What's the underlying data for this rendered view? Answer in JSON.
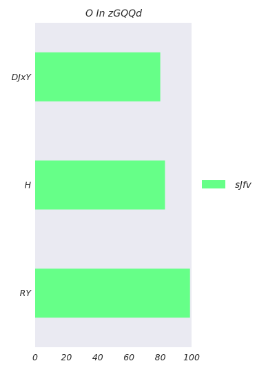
{
  "chart_data": {
    "type": "bar",
    "orientation": "horizontal",
    "title": "O In zGQQd",
    "categories": [
      "DJxY",
      "H",
      "RY"
    ],
    "series": [
      {
        "name": "sJfv",
        "values": [
          80,
          83,
          99
        ],
        "color": "#66ff88"
      }
    ],
    "xlim": [
      0,
      100
    ],
    "xticks": [
      0,
      20,
      40,
      60,
      80,
      100
    ],
    "xlabel": "",
    "ylabel": "",
    "grid": false,
    "background": "#eaeaf2",
    "legend": {
      "position": "right"
    }
  }
}
